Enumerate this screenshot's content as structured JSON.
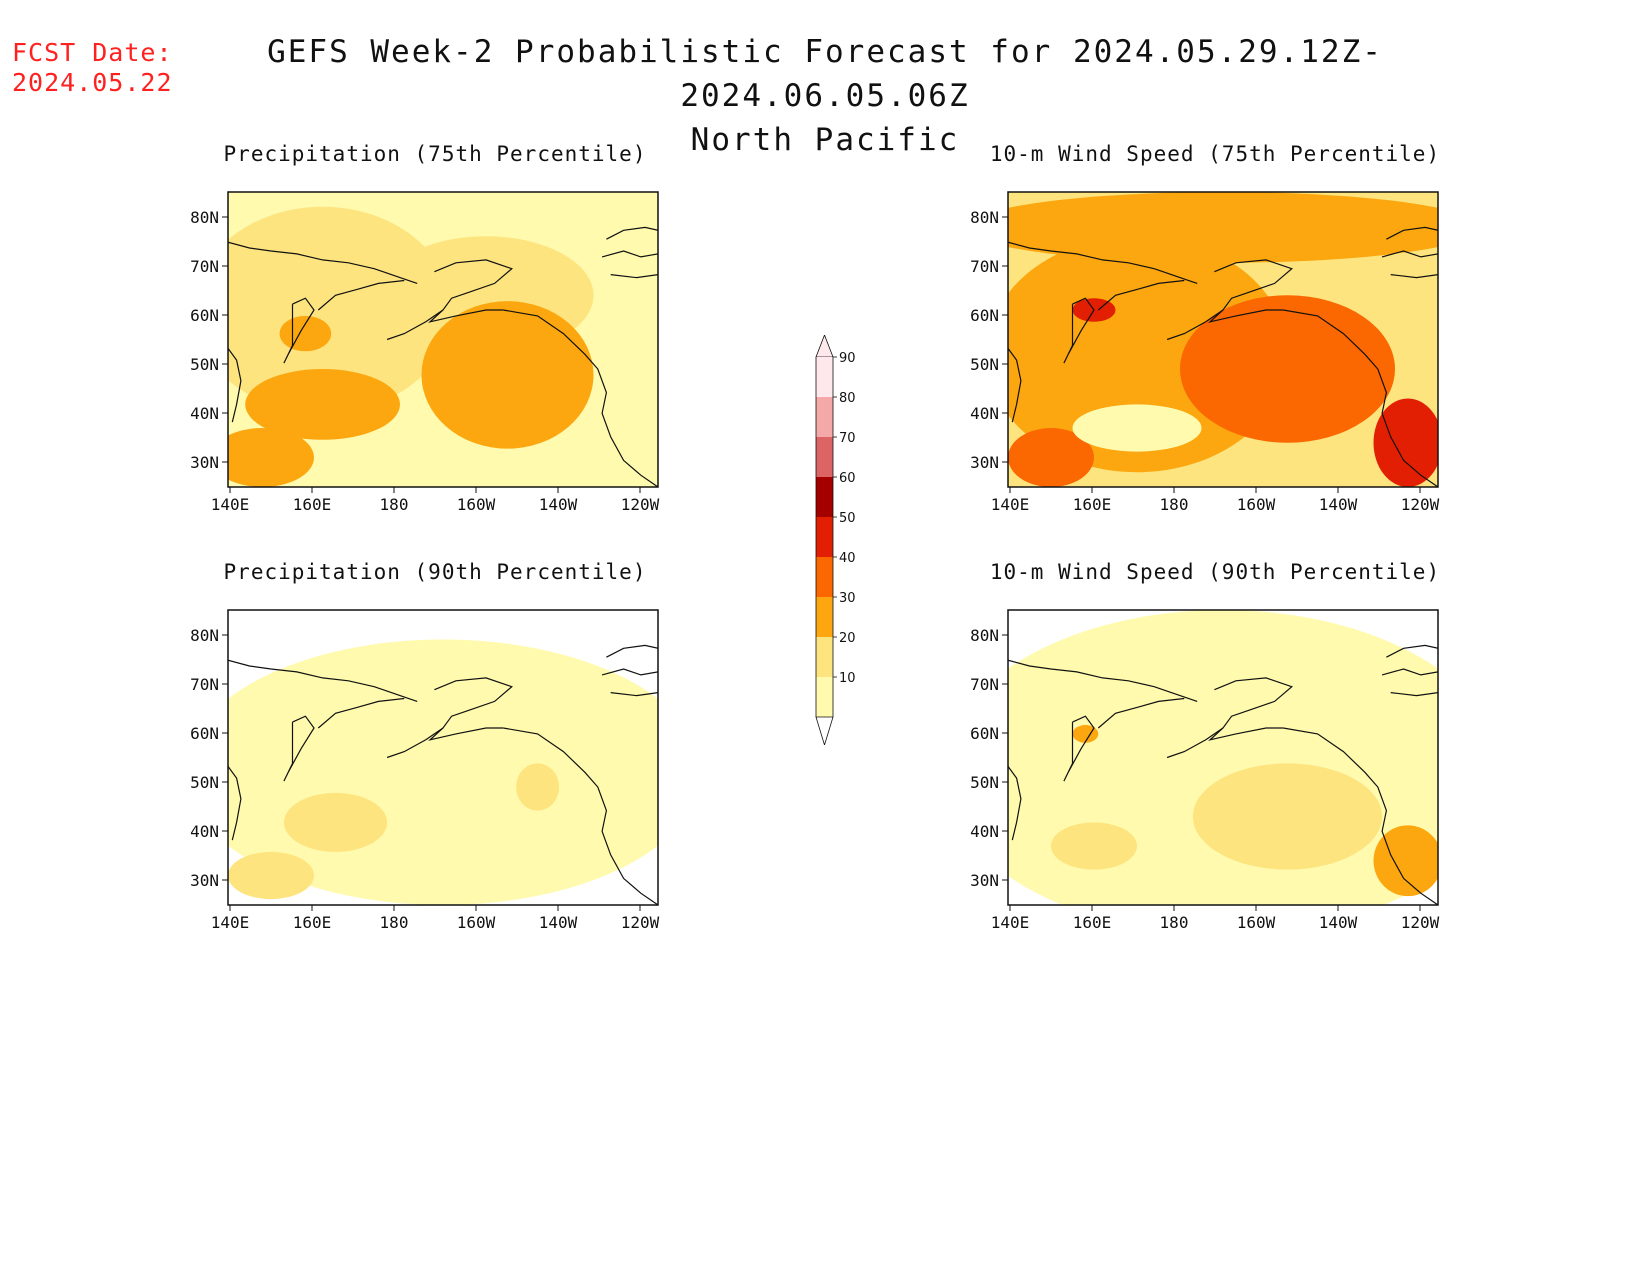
{
  "header": {
    "fcst_date_label": "FCST Date:",
    "fcst_date_value": "2024.05.22",
    "title_line1": "GEFS Week-2 Probabilistic Forecast for 2024.05.29.12Z-2024.06.05.06Z",
    "title_line2": "North Pacific"
  },
  "panels": [
    {
      "id": "precip75",
      "title": "Precipitation (75th Percentile)",
      "level": 2
    },
    {
      "id": "wind75",
      "title": "10-m Wind Speed (75th Percentile)",
      "level": 3
    },
    {
      "id": "precip90",
      "title": "Precipitation (90th Percentile)",
      "level": 1
    },
    {
      "id": "wind90",
      "title": "10-m Wind Speed (90th Percentile)",
      "level": 1
    }
  ],
  "axes": {
    "lon_labels": [
      "140E",
      "160E",
      "180",
      "160W",
      "140W",
      "120W"
    ],
    "lat_labels": [
      "80N",
      "70N",
      "60N",
      "50N",
      "40N",
      "30N"
    ]
  },
  "colorbar": {
    "labels": [
      "10",
      "20",
      "30",
      "40",
      "50",
      "60",
      "70",
      "80",
      "90"
    ],
    "colors": [
      "#fffaae",
      "#fde47f",
      "#fca70f",
      "#fb6701",
      "#e21f03",
      "#a50000",
      "#dc6464",
      "#f4a8a8",
      "#ffe8ec"
    ]
  }
}
